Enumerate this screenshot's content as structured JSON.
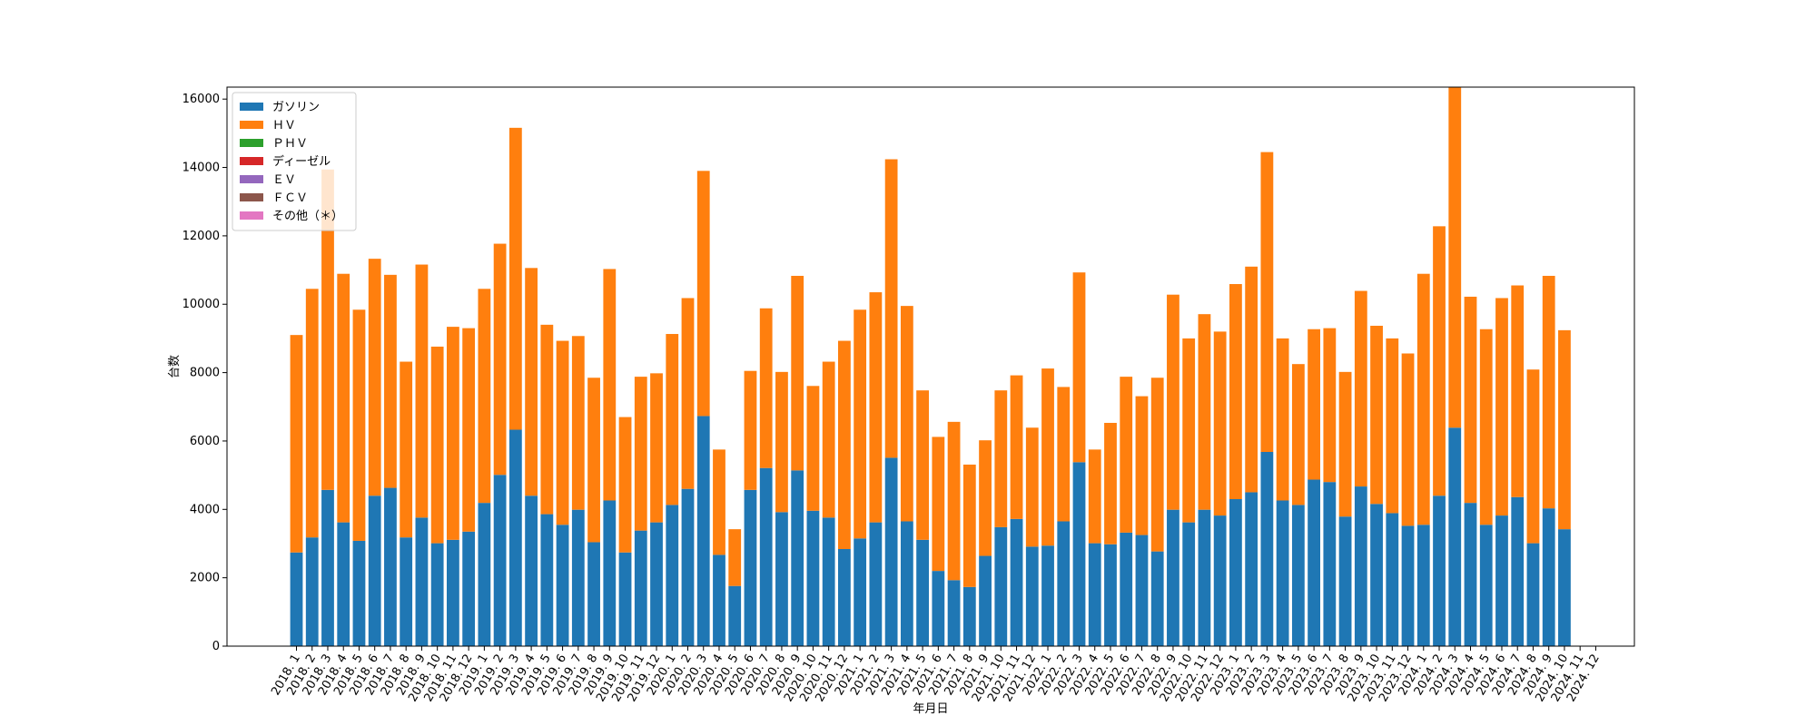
{
  "chart_data": {
    "type": "stacked_bar",
    "x_label": "年月日",
    "y_label": "台数",
    "categories": [
      "2018. 1",
      "2018. 2",
      "2018. 3",
      "2018. 4",
      "2018. 5",
      "2018. 6",
      "2018. 7",
      "2018. 8",
      "2018. 9",
      "2018. 10",
      "2018. 11",
      "2018. 12",
      "2019. 1",
      "2019. 2",
      "2019. 3",
      "2019. 4",
      "2019. 5",
      "2019. 6",
      "2019. 7",
      "2019. 8",
      "2019. 9",
      "2019. 10",
      "2019. 11",
      "2019. 12",
      "2020. 1",
      "2020. 2",
      "2020. 3",
      "2020. 4",
      "2020. 5",
      "2020. 6",
      "2020. 7",
      "2020. 8",
      "2020. 9",
      "2020. 10",
      "2020. 11",
      "2020. 12",
      "2021. 1",
      "2021. 2",
      "2021. 3",
      "2021. 4",
      "2021. 5",
      "2021. 6",
      "2021. 7",
      "2021. 8",
      "2021. 9",
      "2021. 10",
      "2021. 11",
      "2021. 12",
      "2022. 1",
      "2022. 2",
      "2022. 3",
      "2022. 4",
      "2022. 5",
      "2022. 6",
      "2022. 7",
      "2022. 8",
      "2022. 9",
      "2022. 10",
      "2022. 11",
      "2022. 12",
      "2023. 1",
      "2023. 2",
      "2023. 3",
      "2023. 4",
      "2023. 5",
      "2023. 6",
      "2023. 7",
      "2023. 8",
      "2023. 9",
      "2023. 10",
      "2023. 11",
      "2023. 12",
      "2024. 1",
      "2024. 2",
      "2024. 3",
      "2024. 4",
      "2024. 5",
      "2024. 6",
      "2024. 7",
      "2024. 8",
      "2024. 9",
      "2024. 10",
      "2024. 11",
      "2024. 12"
    ],
    "series": [
      {
        "name": "ガソリン",
        "color": "#1f77b4",
        "values": [
          2740,
          3180,
          4570,
          3620,
          3080,
          4400,
          4630,
          3180,
          3760,
          3010,
          3110,
          3350,
          4190,
          5010,
          6330,
          4400,
          3860,
          3550,
          3990,
          3040,
          4260,
          2740,
          3380,
          3620,
          4130,
          4600,
          6730,
          2670,
          1760,
          4570,
          5210,
          3920,
          5140,
          3960,
          3760,
          2840,
          3150,
          3620,
          5510,
          3650,
          3110,
          2200,
          1930,
          1730,
          2640,
          3480,
          3720,
          2910,
          2940,
          3650,
          5380,
          3010,
          2980,
          3320,
          3250,
          2770,
          3990,
          3620,
          3990,
          3820,
          4300,
          4500,
          5680,
          4260,
          4130,
          4870,
          4800,
          3790,
          4670,
          4160,
          3890,
          3520,
          3550,
          4400,
          6390,
          4190,
          3550,
          3820,
          4360,
          3010,
          4030,
          3420,
          null,
          null
        ]
      },
      {
        "name": "ＨＶ",
        "color": "#ff7f0e",
        "values": [
          6360,
          7270,
          9370,
          7270,
          6760,
          6930,
          6230,
          5140,
          7400,
          5750,
          6230,
          5950,
          6260,
          6760,
          8830,
          6660,
          5540,
          5380,
          5080,
          4810,
          6770,
          3960,
          4500,
          4360,
          5000,
          5580,
          7170,
          3080,
          1660,
          3480,
          4670,
          4100,
          5690,
          3650,
          4560,
          6090,
          6690,
          6730,
          8730,
          6300,
          4370,
          3920,
          4630,
          3580,
          3380,
          4000,
          4200,
          3480,
          5180,
          3930,
          5550,
          2740,
          3550,
          4560,
          4060,
          5080,
          6290,
          5380,
          5720,
          5380,
          6290,
          6600,
          8770,
          4740,
          4120,
          4400,
          4500,
          4230,
          5720,
          5210,
          5110,
          5040,
          7340,
          7880,
          9960,
          6030,
          5720,
          6360,
          6190,
          5080,
          6800,
          5820,
          null,
          null
        ]
      },
      {
        "name": "ＰＨＶ",
        "color": "#2ca02c",
        "values": [
          0,
          0,
          0,
          0,
          0,
          0,
          0,
          0,
          0,
          0,
          0,
          0,
          0,
          0,
          0,
          0,
          0,
          0,
          0,
          0,
          0,
          0,
          0,
          0,
          0,
          0,
          0,
          0,
          0,
          0,
          0,
          0,
          0,
          0,
          0,
          0,
          0,
          0,
          0,
          0,
          0,
          0,
          0,
          0,
          0,
          0,
          0,
          0,
          0,
          0,
          0,
          0,
          0,
          0,
          0,
          0,
          0,
          0,
          0,
          0,
          0,
          0,
          0,
          0,
          0,
          0,
          0,
          0,
          0,
          0,
          0,
          0,
          0,
          0,
          0,
          0,
          0,
          0,
          0,
          0,
          0,
          0,
          null,
          null
        ]
      },
      {
        "name": "ディーゼル",
        "color": "#d62728",
        "values": [
          0,
          0,
          0,
          0,
          0,
          0,
          0,
          0,
          0,
          0,
          0,
          0,
          0,
          0,
          0,
          0,
          0,
          0,
          0,
          0,
          0,
          0,
          0,
          0,
          0,
          0,
          0,
          0,
          0,
          0,
          0,
          0,
          0,
          0,
          0,
          0,
          0,
          0,
          0,
          0,
          0,
          0,
          0,
          0,
          0,
          0,
          0,
          0,
          0,
          0,
          0,
          0,
          0,
          0,
          0,
          0,
          0,
          0,
          0,
          0,
          0,
          0,
          0,
          0,
          0,
          0,
          0,
          0,
          0,
          0,
          0,
          0,
          0,
          0,
          0,
          0,
          0,
          0,
          0,
          0,
          0,
          0,
          null,
          null
        ]
      },
      {
        "name": "ＥＶ",
        "color": "#9467bd",
        "values": [
          0,
          0,
          0,
          0,
          0,
          0,
          0,
          0,
          0,
          0,
          0,
          0,
          0,
          0,
          0,
          0,
          0,
          0,
          0,
          0,
          0,
          0,
          0,
          0,
          0,
          0,
          0,
          0,
          0,
          0,
          0,
          0,
          0,
          0,
          0,
          0,
          0,
          0,
          0,
          0,
          0,
          0,
          0,
          0,
          0,
          0,
          0,
          0,
          0,
          0,
          0,
          0,
          0,
          0,
          0,
          0,
          0,
          0,
          0,
          0,
          0,
          0,
          0,
          0,
          0,
          0,
          0,
          0,
          0,
          0,
          0,
          0,
          0,
          0,
          0,
          0,
          0,
          0,
          0,
          0,
          0,
          0,
          null,
          null
        ]
      },
      {
        "name": "ＦＣＶ",
        "color": "#8c564b",
        "values": [
          0,
          0,
          0,
          0,
          0,
          0,
          0,
          0,
          0,
          0,
          0,
          0,
          0,
          0,
          0,
          0,
          0,
          0,
          0,
          0,
          0,
          0,
          0,
          0,
          0,
          0,
          0,
          0,
          0,
          0,
          0,
          0,
          0,
          0,
          0,
          0,
          0,
          0,
          0,
          0,
          0,
          0,
          0,
          0,
          0,
          0,
          0,
          0,
          0,
          0,
          0,
          0,
          0,
          0,
          0,
          0,
          0,
          0,
          0,
          0,
          0,
          0,
          0,
          0,
          0,
          0,
          0,
          0,
          0,
          0,
          0,
          0,
          0,
          0,
          0,
          0,
          0,
          0,
          0,
          0,
          0,
          0,
          null,
          null
        ]
      },
      {
        "name": "その他（＊）",
        "color": "#e377c2",
        "values": [
          0,
          0,
          0,
          0,
          0,
          0,
          0,
          0,
          0,
          0,
          0,
          0,
          0,
          0,
          0,
          0,
          0,
          0,
          0,
          0,
          0,
          0,
          0,
          0,
          0,
          0,
          0,
          0,
          0,
          0,
          0,
          0,
          0,
          0,
          0,
          0,
          0,
          0,
          0,
          0,
          0,
          0,
          0,
          0,
          0,
          0,
          0,
          0,
          0,
          0,
          0,
          0,
          0,
          0,
          0,
          0,
          0,
          0,
          0,
          0,
          0,
          0,
          0,
          0,
          0,
          0,
          0,
          0,
          0,
          0,
          0,
          0,
          0,
          0,
          0,
          0,
          0,
          0,
          0,
          0,
          0,
          0,
          null,
          null
        ]
      }
    ],
    "ylim": [
      0,
      16350
    ],
    "yticks": [
      0,
      2000,
      4000,
      6000,
      8000,
      10000,
      12000,
      14000,
      16000
    ],
    "legend": "upper left"
  }
}
